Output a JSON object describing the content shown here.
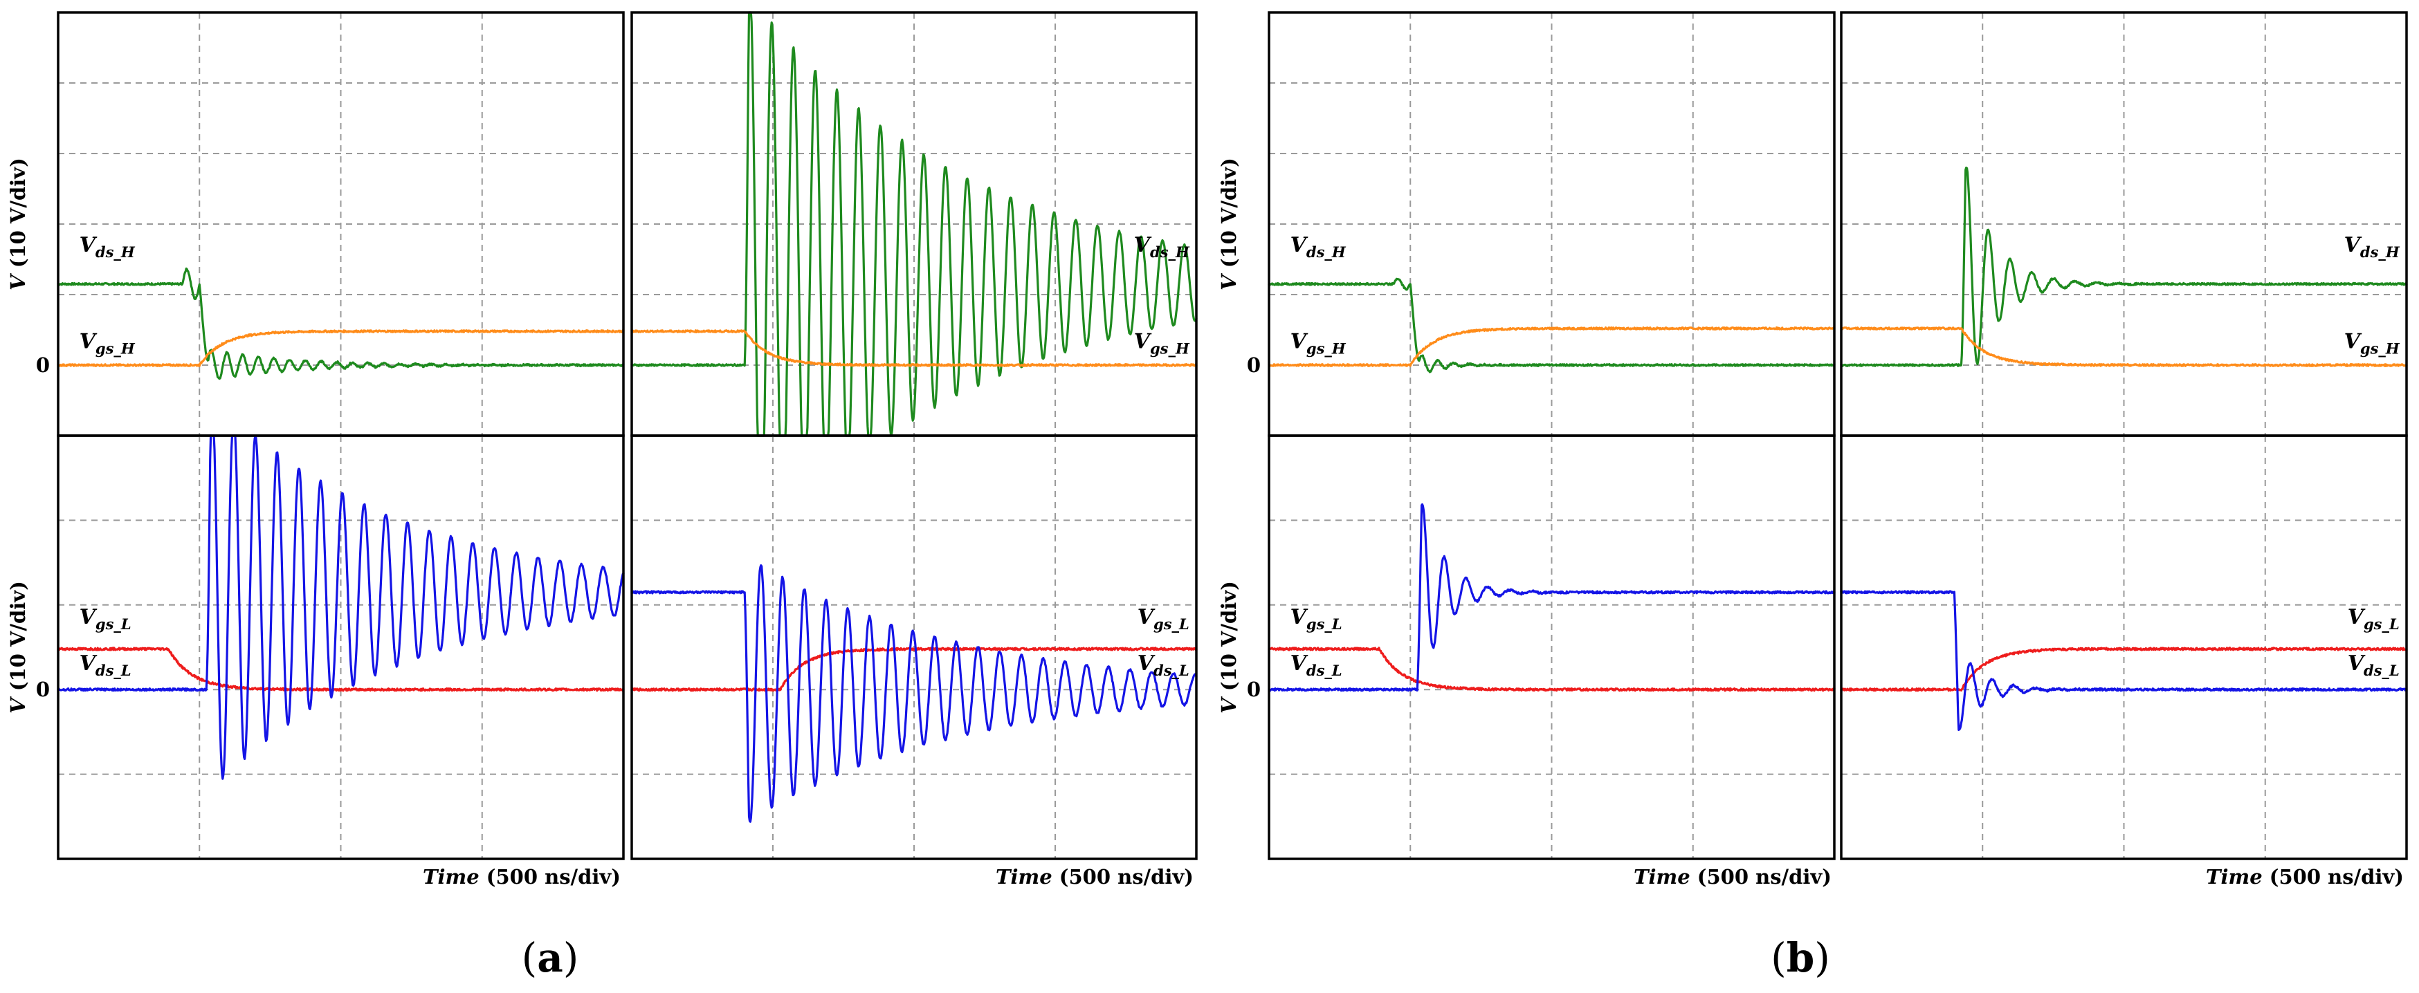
{
  "figure": {
    "group_labels": {
      "a": "a",
      "b": "b"
    },
    "y_axis_label": "V (10 V/div)",
    "y_axis_var": "V",
    "y_axis_unit": " (10 V/div)",
    "zero_label": "0",
    "time_label_var": "Time",
    "time_label_unit": " (500 ns/div)"
  },
  "colors": {
    "vds_h": "#1e8a1e",
    "vgs_h": "#ff8c1a",
    "vgs_l": "#ee1c1c",
    "vds_l": "#1414e6",
    "grid": "#9a9a9a",
    "frame": "#000000"
  },
  "chart_data": [
    {
      "type": "line",
      "id": "a-top-left",
      "divisions": {
        "x": 4,
        "y": 6
      },
      "ylim": [
        -1,
        5
      ],
      "xlim": [
        0,
        4
      ],
      "series": [
        {
          "name": "V_ds_H",
          "label_main": "V",
          "label_sub": "ds_H",
          "color_key": "vds_h",
          "type": "turnoff",
          "base": 1.15,
          "step_time": 1.0,
          "final": 0.0,
          "overshoot": 0.35,
          "freq": 9,
          "decay": 1.8
        },
        {
          "name": "V_gs_H",
          "label_main": "V",
          "label_sub": "gs_H",
          "color_key": "vgs_h",
          "type": "rise",
          "base": 0.0,
          "step_time": 1.0,
          "final": 0.48
        }
      ]
    },
    {
      "type": "line",
      "id": "a-top-right",
      "divisions": {
        "x": 4,
        "y": 6
      },
      "ylim": [
        -1,
        5
      ],
      "xlim": [
        0,
        4
      ],
      "series": [
        {
          "name": "V_ds_H",
          "label_main": "V",
          "label_sub": "ds_H",
          "color_key": "vds_h",
          "type": "ring",
          "base": 0.0,
          "step_time": 0.8,
          "final": 1.15,
          "overshoot": 4.2,
          "freq": 6.5,
          "decay": 0.65
        },
        {
          "name": "V_gs_H",
          "label_main": "V",
          "label_sub": "gs_H",
          "color_key": "vgs_h",
          "type": "fall",
          "base": 0.48,
          "step_time": 0.8,
          "final": 0.0
        }
      ]
    },
    {
      "type": "line",
      "id": "a-bottom-left",
      "divisions": {
        "x": 4,
        "y": 5
      },
      "ylim": [
        -2,
        3
      ],
      "xlim": [
        0,
        4
      ],
      "series": [
        {
          "name": "V_gs_L",
          "label_main": "V",
          "label_sub": "gs_L",
          "color_key": "vgs_l",
          "type": "fall",
          "base": 0.48,
          "step_time": 0.78,
          "final": 0.0
        },
        {
          "name": "V_ds_L",
          "label_main": "V",
          "label_sub": "ds_L",
          "color_key": "vds_l",
          "type": "ring",
          "base": 0.0,
          "step_time": 1.05,
          "final": 1.15,
          "overshoot": 2.4,
          "freq": 6.5,
          "decay": 0.75
        }
      ]
    },
    {
      "type": "line",
      "id": "a-bottom-right",
      "divisions": {
        "x": 4,
        "y": 5
      },
      "ylim": [
        -2,
        3
      ],
      "xlim": [
        0,
        4
      ],
      "series": [
        {
          "name": "V_gs_L",
          "label_main": "V",
          "label_sub": "gs_L",
          "color_key": "vgs_l",
          "type": "rise",
          "base": 0.0,
          "step_time": 1.05,
          "final": 0.48
        },
        {
          "name": "V_ds_L",
          "label_main": "V",
          "label_sub": "ds_L",
          "color_key": "vds_l",
          "type": "ringdown",
          "base": 1.15,
          "step_time": 0.8,
          "final": 0.0,
          "overshoot": 1.6,
          "freq": 6.5,
          "decay": 0.7
        }
      ]
    },
    {
      "type": "line",
      "id": "b-top-left",
      "divisions": {
        "x": 4,
        "y": 6
      },
      "ylim": [
        -1,
        5
      ],
      "xlim": [
        0,
        4
      ],
      "series": [
        {
          "name": "V_ds_H",
          "label_main": "V",
          "label_sub": "ds_H",
          "color_key": "vds_h",
          "type": "turnoff",
          "base": 1.15,
          "step_time": 1.0,
          "final": 0.0,
          "overshoot": 0.12,
          "freq": 9,
          "decay": 7
        },
        {
          "name": "V_gs_H",
          "label_main": "V",
          "label_sub": "gs_H",
          "color_key": "vgs_h",
          "type": "rise",
          "base": 0.0,
          "step_time": 1.0,
          "final": 0.52
        }
      ]
    },
    {
      "type": "line",
      "id": "b-top-right",
      "divisions": {
        "x": 4,
        "y": 6
      },
      "ylim": [
        -1,
        5
      ],
      "xlim": [
        0,
        4
      ],
      "series": [
        {
          "name": "V_ds_H",
          "label_main": "V",
          "label_sub": "ds_H",
          "color_key": "vds_h",
          "type": "ring",
          "base": 0.0,
          "step_time": 0.85,
          "final": 1.15,
          "overshoot": 2.0,
          "freq": 6.5,
          "decay": 5
        },
        {
          "name": "V_gs_H",
          "label_main": "V",
          "label_sub": "gs_H",
          "color_key": "vgs_h",
          "type": "fall",
          "base": 0.52,
          "step_time": 0.85,
          "final": 0.0
        }
      ]
    },
    {
      "type": "line",
      "id": "b-bottom-left",
      "divisions": {
        "x": 4,
        "y": 5
      },
      "ylim": [
        -2,
        3
      ],
      "xlim": [
        0,
        4
      ],
      "series": [
        {
          "name": "V_gs_L",
          "label_main": "V",
          "label_sub": "gs_L",
          "color_key": "vgs_l",
          "type": "fall",
          "base": 0.48,
          "step_time": 0.78,
          "final": 0.0
        },
        {
          "name": "V_ds_L",
          "label_main": "V",
          "label_sub": "ds_L",
          "color_key": "vds_l",
          "type": "ring",
          "base": 0.0,
          "step_time": 1.05,
          "final": 1.15,
          "overshoot": 1.3,
          "freq": 6.5,
          "decay": 6
        }
      ]
    },
    {
      "type": "line",
      "id": "b-bottom-right",
      "divisions": {
        "x": 4,
        "y": 5
      },
      "ylim": [
        -2,
        3
      ],
      "xlim": [
        0,
        4
      ],
      "series": [
        {
          "name": "V_gs_L",
          "label_main": "V",
          "label_sub": "gs_L",
          "color_key": "vgs_l",
          "type": "rise",
          "base": 0.0,
          "step_time": 0.85,
          "final": 0.48
        },
        {
          "name": "V_ds_L",
          "label_main": "V",
          "label_sub": "ds_L",
          "color_key": "vds_l",
          "type": "ringdown",
          "base": 1.15,
          "step_time": 0.8,
          "final": 0.0,
          "overshoot": 0.6,
          "freq": 6.5,
          "decay": 6
        }
      ]
    }
  ]
}
